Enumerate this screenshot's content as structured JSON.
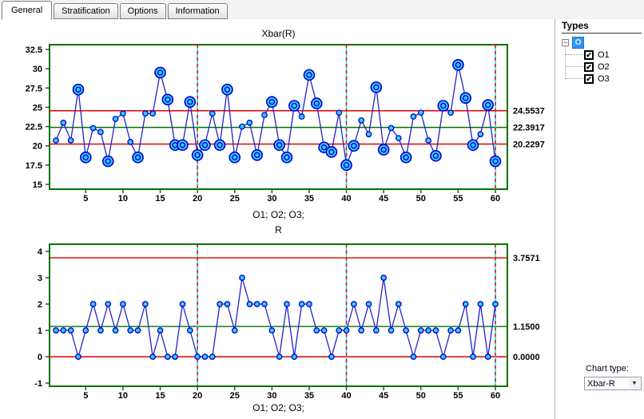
{
  "app": {
    "tabs": [
      {
        "label": "General",
        "active": true
      },
      {
        "label": "Stratification",
        "active": false
      },
      {
        "label": "Options",
        "active": false
      },
      {
        "label": "Information",
        "active": false
      }
    ]
  },
  "right_panel": {
    "header": "Types",
    "tree": {
      "root": "O",
      "items": [
        {
          "label": "O1",
          "checked": true
        },
        {
          "label": "O2",
          "checked": true
        },
        {
          "label": "O3",
          "checked": true
        }
      ]
    },
    "chart_type": {
      "label": "Chart type:",
      "value": "Xbar-R"
    }
  },
  "icons": {
    "check": "✔",
    "collapse": "−",
    "dropdown": "▼"
  },
  "colors": {
    "frame_green": "#007300",
    "center_green": "#007300",
    "limit_red": "#dd0000",
    "series_blue": "#2222cc",
    "marker_fill_cyan": "#33ccff",
    "marker_stroke_blue": "#0000cc",
    "phase_cyan": "#00e5ff",
    "phase_red": "#ff0000",
    "tree_select_blue": "#2e96f5"
  },
  "chart_data": [
    {
      "type": "line",
      "title": "Xbar(R)",
      "xlabel": "O1; O2; O3;",
      "n": 60,
      "x_ticks": [
        5,
        10,
        15,
        20,
        25,
        30,
        35,
        40,
        45,
        50,
        55,
        60
      ],
      "y_ticks": [
        15,
        17.5,
        20,
        22.5,
        25,
        27.5,
        30,
        32.5
      ],
      "ylim": [
        15,
        32.5
      ],
      "grid": false,
      "legend": "none",
      "series": [
        {
          "name": "Xbar",
          "values": [
            20.7,
            23.0,
            20.7,
            27.3,
            18.5,
            22.3,
            21.8,
            18.0,
            23.5,
            24.2,
            20.5,
            18.5,
            24.2,
            24.2,
            29.5,
            26.0,
            20.1,
            20.1,
            25.7,
            18.8,
            20.1,
            24.2,
            20.1,
            27.3,
            18.5,
            22.5,
            23.0,
            18.8,
            24.0,
            25.7,
            20.1,
            18.5,
            25.2,
            23.8,
            29.2,
            25.5,
            19.8,
            19.2,
            24.3,
            17.5,
            20.0,
            23.3,
            21.5,
            27.6,
            19.5,
            22.3,
            21.0,
            18.5,
            23.8,
            24.3,
            20.7,
            18.7,
            25.2,
            24.3,
            30.5,
            26.2,
            20.1,
            21.5,
            25.3,
            18.0
          ]
        }
      ],
      "limits": {
        "ucl": {
          "value": 24.5537,
          "label": "24.5537"
        },
        "center": {
          "value": 22.3917,
          "label": "22.3917"
        },
        "lcl": {
          "value": 20.2297,
          "label": "20.2297"
        }
      },
      "phase_lines": [
        20,
        40,
        60
      ]
    },
    {
      "type": "line",
      "title": "R",
      "xlabel": "O1; O2; O3;",
      "n": 60,
      "x_ticks": [
        5,
        10,
        15,
        20,
        25,
        30,
        35,
        40,
        45,
        50,
        55,
        60
      ],
      "y_ticks": [
        -1,
        0,
        1,
        2,
        3,
        4
      ],
      "ylim": [
        -1,
        4
      ],
      "grid": false,
      "legend": "none",
      "series": [
        {
          "name": "R",
          "values": [
            1,
            1,
            1,
            0,
            1,
            2,
            1,
            2,
            1,
            2,
            1,
            1,
            2,
            0,
            1,
            0,
            0,
            2,
            1,
            0,
            0,
            0,
            2,
            2,
            1,
            3,
            2,
            2,
            2,
            1,
            0,
            2,
            0,
            2,
            2,
            1,
            1,
            0,
            1,
            1,
            2,
            1,
            2,
            1,
            3,
            1,
            2,
            1,
            0,
            1,
            1,
            1,
            0,
            1,
            1,
            2,
            0,
            2,
            0,
            2
          ]
        }
      ],
      "limits": {
        "ucl": {
          "value": 3.7571,
          "label": "3.7571"
        },
        "center": {
          "value": 1.15,
          "label": "1.1500"
        },
        "lcl": {
          "value": 0.0,
          "label": "0.0000"
        }
      },
      "phase_lines": [
        20,
        40,
        60
      ]
    }
  ]
}
